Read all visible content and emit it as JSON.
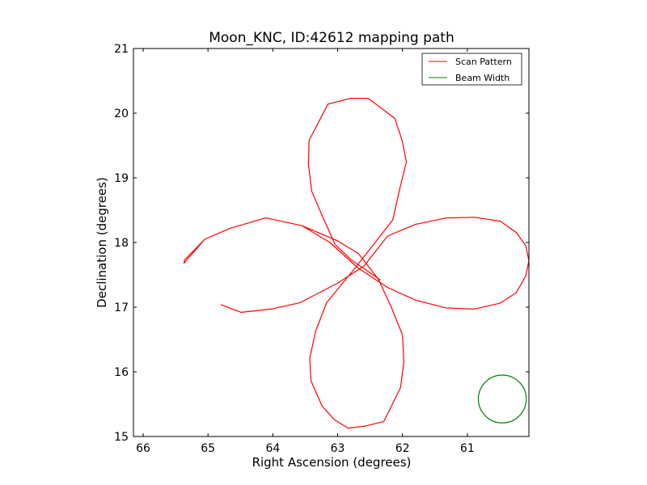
{
  "chart_data": {
    "type": "line",
    "title": "Moon_KNC, ID:42612 mapping path",
    "xlabel": "Right Ascension (degrees)",
    "ylabel": "Declination (degrees)",
    "xlim": [
      66.15,
      60.05
    ],
    "ylim": [
      15,
      21
    ],
    "x_inverted": true,
    "x_ticks": [
      "66",
      "65",
      "64",
      "63",
      "62",
      "61"
    ],
    "y_ticks": [
      "15",
      "16",
      "17",
      "18",
      "19",
      "20",
      "21"
    ],
    "grid": false,
    "legend": {
      "placement": "top-right",
      "entries": [
        "Scan Pattern",
        "Beam Width"
      ]
    },
    "series": [
      {
        "name": "Scan Pattern",
        "color": "#ff0000",
        "points": [
          [
            64.8,
            17.04
          ],
          [
            64.49,
            16.92
          ],
          [
            64.03,
            16.97
          ],
          [
            63.58,
            17.07
          ],
          [
            63.0,
            17.37
          ],
          [
            62.59,
            17.64
          ],
          [
            62.23,
            18.1
          ],
          [
            61.8,
            18.28
          ],
          [
            61.32,
            18.38
          ],
          [
            60.89,
            18.39
          ],
          [
            60.49,
            18.33
          ],
          [
            60.24,
            18.15
          ],
          [
            60.1,
            17.95
          ],
          [
            60.05,
            17.72
          ],
          [
            60.1,
            17.48
          ],
          [
            60.25,
            17.22
          ],
          [
            60.5,
            17.06
          ],
          [
            60.9,
            16.97
          ],
          [
            61.34,
            16.99
          ],
          [
            61.8,
            17.11
          ],
          [
            62.22,
            17.3
          ],
          [
            62.68,
            17.6
          ],
          [
            63.12,
            18.0
          ],
          [
            63.55,
            18.26
          ],
          [
            64.11,
            18.38
          ],
          [
            64.66,
            18.22
          ],
          [
            65.05,
            18.05
          ],
          [
            65.37,
            17.68
          ],
          [
            65.36,
            17.73
          ],
          [
            65.05,
            18.05
          ],
          [
            64.66,
            18.22
          ],
          [
            64.11,
            18.38
          ],
          [
            63.55,
            18.26
          ],
          [
            63.01,
            18.03
          ],
          [
            62.68,
            17.83
          ],
          [
            62.37,
            17.43
          ],
          [
            62.17,
            16.99
          ],
          [
            62.0,
            16.57
          ],
          [
            61.98,
            16.15
          ],
          [
            62.03,
            15.76
          ],
          [
            62.17,
            15.47
          ],
          [
            62.29,
            15.23
          ],
          [
            62.58,
            15.16
          ],
          [
            62.84,
            15.13
          ],
          [
            63.05,
            15.26
          ],
          [
            63.24,
            15.47
          ],
          [
            63.41,
            15.86
          ],
          [
            63.43,
            16.21
          ],
          [
            63.34,
            16.63
          ],
          [
            63.17,
            17.07
          ],
          [
            62.72,
            17.62
          ],
          [
            62.43,
            17.99
          ],
          [
            62.15,
            18.35
          ],
          [
            62.05,
            18.8
          ],
          [
            61.94,
            19.25
          ],
          [
            62.01,
            19.59
          ],
          [
            62.12,
            19.92
          ],
          [
            62.53,
            20.23
          ],
          [
            62.8,
            20.23
          ],
          [
            63.15,
            20.14
          ],
          [
            63.44,
            19.58
          ],
          [
            63.45,
            19.21
          ],
          [
            63.4,
            18.79
          ],
          [
            63.22,
            18.37
          ],
          [
            63.04,
            17.97
          ],
          [
            62.79,
            17.73
          ],
          [
            62.34,
            17.42
          ]
        ]
      },
      {
        "name": "Beam Width",
        "color": "#008000",
        "circle": {
          "center": [
            60.46,
            15.58
          ],
          "radius": 0.37
        }
      }
    ]
  }
}
